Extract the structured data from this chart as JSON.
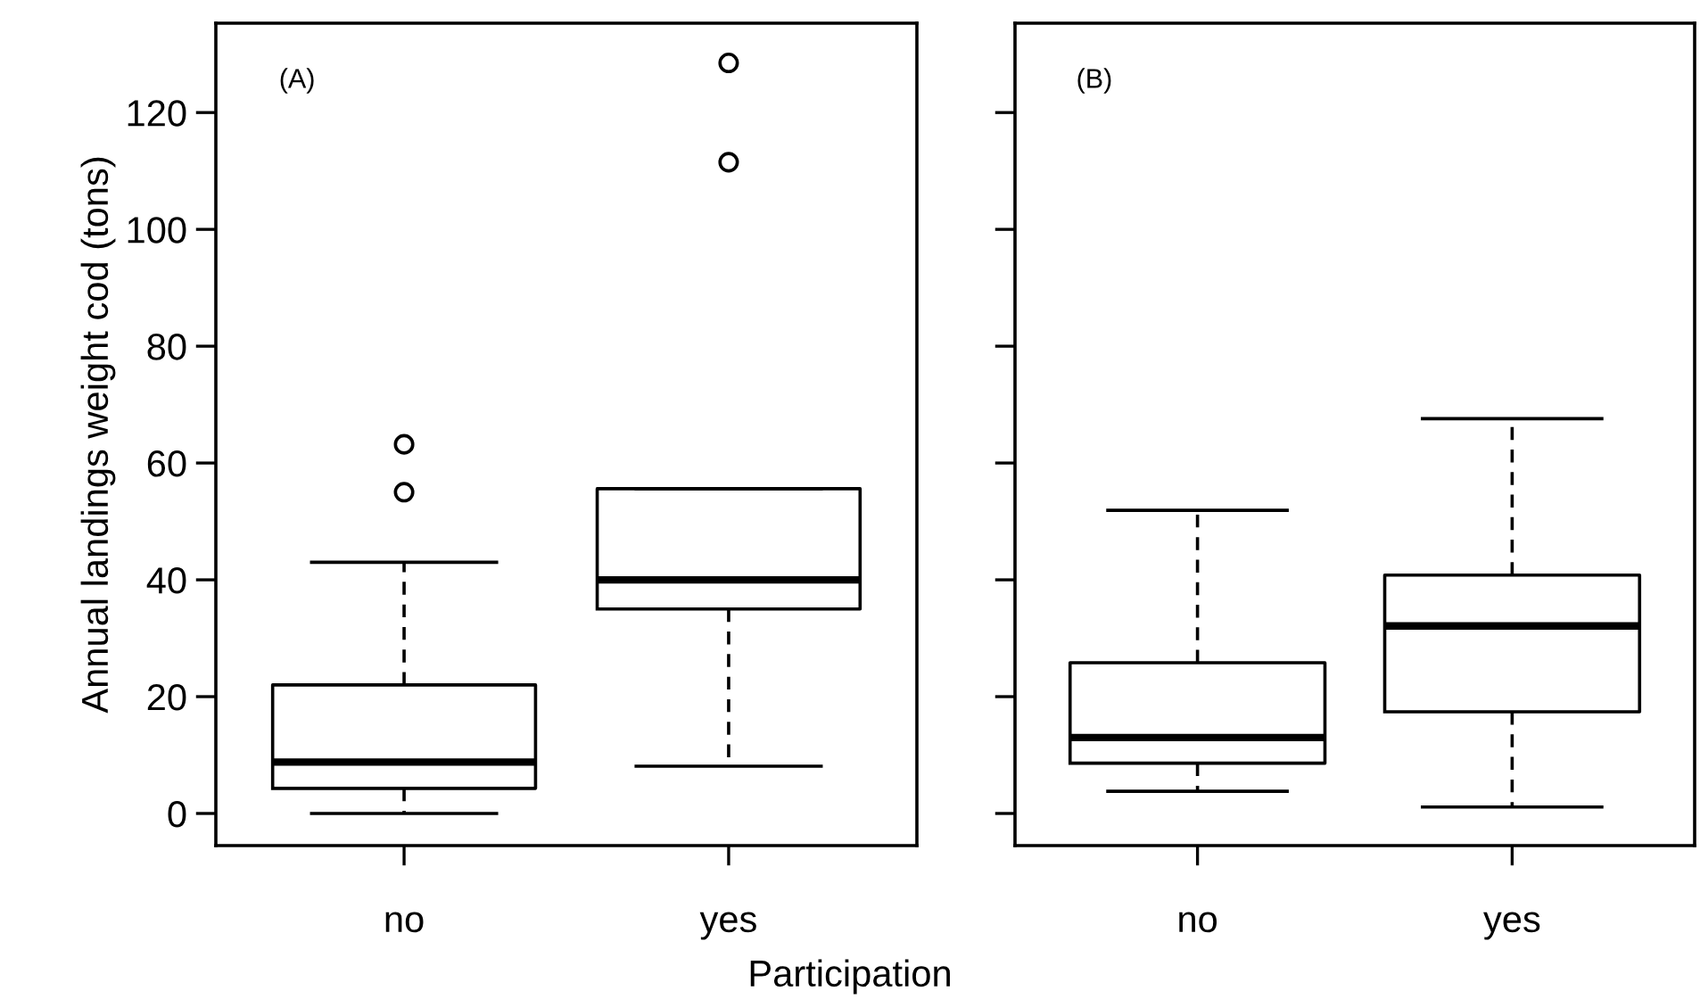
{
  "chart_data": [
    {
      "type": "box",
      "ylabel": "Annual landings weight cod (tons)",
      "xlabel": "Participation",
      "annotations": [
        "(A)"
      ],
      "categories": [
        "no",
        "yes"
      ],
      "ylim": [
        -5.5,
        135.3
      ],
      "yticks": [
        0,
        20,
        40,
        60,
        80,
        100,
        120
      ],
      "boxes": [
        {
          "low": 0,
          "q1": 4.3,
          "median": 8.8,
          "q3": 22,
          "high": 43,
          "outliers": [
            55,
            63.2
          ]
        },
        {
          "low": 8.1,
          "q1": 35,
          "median": 40,
          "q3": 55.6,
          "high": 55.6,
          "outliers": [
            111.5,
            128.5
          ]
        }
      ]
    },
    {
      "type": "box",
      "annotations": [
        "(B)"
      ],
      "categories": [
        "no",
        "yes"
      ],
      "ylim": [
        -5.5,
        135.3
      ],
      "yticks": [
        {
          "value": 0,
          "label": null
        },
        {
          "value": 20,
          "label": null
        },
        {
          "value": 40,
          "label": null
        },
        {
          "value": 60,
          "label": null
        },
        {
          "value": 80,
          "label": null
        },
        {
          "value": 100,
          "label": null
        },
        {
          "value": 120,
          "label": null
        }
      ],
      "tick_labels": "x",
      "boxes": [
        {
          "low": 3.8,
          "q1": 8.6,
          "median": 13,
          "q3": 25.8,
          "high": 51.9
        },
        {
          "low": 1.1,
          "q1": 17.4,
          "median": 32.1,
          "q3": 40.8,
          "high": 67.6
        }
      ]
    }
  ]
}
